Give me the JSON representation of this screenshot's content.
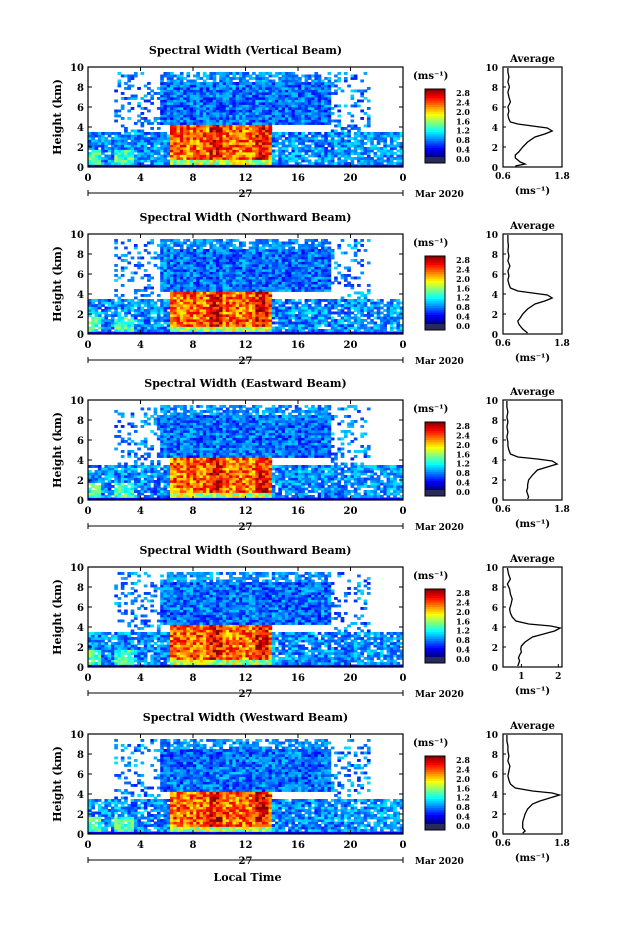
{
  "chart_data": [
    {
      "type": "heatmap",
      "title": "Spectral Width (Vertical Beam)",
      "ylabel": "Height (km)",
      "ylim": [
        0,
        10
      ],
      "yticks": [
        "0",
        "2",
        "4",
        "6",
        "8",
        "10"
      ],
      "xlim": [
        0,
        24
      ],
      "xticks": [
        "0",
        "4",
        "8",
        "12",
        "16",
        "20",
        "0"
      ],
      "date_label": "27",
      "month_label": "Mar 2020",
      "colorbar": {
        "unit": "(ms⁻¹)",
        "ticks": [
          "0.0",
          "0.4",
          "0.8",
          "1.2",
          "1.6",
          "2.0",
          "2.4",
          "2.8"
        ]
      },
      "average": {
        "title": "Average",
        "xlabel": "(ms⁻¹)",
        "xlim": [
          0.6,
          1.8
        ],
        "xticks": [
          "0.6",
          "1.8"
        ],
        "yticks": [
          "0",
          "2",
          "4",
          "6",
          "8",
          "10"
        ],
        "height": [
          0.1,
          0.3,
          0.5,
          0.7,
          0.9,
          1.2,
          1.5,
          2.0,
          2.5,
          3.0,
          3.3,
          3.6,
          3.9,
          4.1,
          4.3,
          4.5,
          4.8,
          5.2,
          5.6,
          6.0,
          6.5,
          7.0,
          7.5,
          8.0,
          8.5,
          9.0,
          9.5,
          9.9
        ],
        "value": [
          0.85,
          1.05,
          0.95,
          0.9,
          0.85,
          0.85,
          0.92,
          1.0,
          1.1,
          1.25,
          1.45,
          1.6,
          1.5,
          1.2,
          0.9,
          0.75,
          0.72,
          0.7,
          0.72,
          0.7,
          0.75,
          0.72,
          0.7,
          0.73,
          0.7,
          0.72,
          0.7,
          0.7
        ]
      }
    },
    {
      "type": "heatmap",
      "title": "Spectral Width (Northward Beam)",
      "ylabel": "Height (km)",
      "ylim": [
        0,
        10
      ],
      "yticks": [
        "0",
        "2",
        "4",
        "6",
        "8",
        "10"
      ],
      "xlim": [
        0,
        24
      ],
      "xticks": [
        "0",
        "4",
        "8",
        "12",
        "16",
        "20",
        "0"
      ],
      "date_label": "27",
      "month_label": "Mar 2020",
      "colorbar": {
        "unit": "(ms⁻¹)",
        "ticks": [
          "0.0",
          "0.4",
          "0.8",
          "1.2",
          "1.6",
          "2.0",
          "2.4",
          "2.8"
        ]
      },
      "average": {
        "title": "Average",
        "xlabel": "(ms⁻¹)",
        "xlim": [
          0.6,
          1.8
        ],
        "xticks": [
          "0.6",
          "1.8"
        ],
        "yticks": [
          "0",
          "2",
          "4",
          "6",
          "8",
          "10"
        ],
        "height": [
          0.1,
          0.3,
          0.5,
          0.8,
          1.0,
          1.3,
          1.6,
          2.0,
          2.5,
          3.0,
          3.3,
          3.6,
          3.9,
          4.1,
          4.3,
          4.6,
          5.0,
          5.4,
          5.8,
          6.3,
          6.8,
          7.3,
          7.8,
          8.3,
          8.8,
          9.3,
          9.9
        ],
        "value": [
          1.1,
          1.05,
          1.0,
          0.95,
          0.92,
          0.9,
          0.95,
          1.0,
          1.1,
          1.25,
          1.45,
          1.6,
          1.5,
          1.2,
          0.9,
          0.75,
          0.72,
          0.7,
          0.72,
          0.7,
          0.74,
          0.7,
          0.72,
          0.7,
          0.71,
          0.7,
          0.7
        ]
      }
    },
    {
      "type": "heatmap",
      "title": "Spectral Width (Eastward Beam)",
      "ylabel": "Height (km)",
      "ylim": [
        0,
        10
      ],
      "yticks": [
        "0",
        "2",
        "4",
        "6",
        "8",
        "10"
      ],
      "xlim": [
        0,
        24
      ],
      "xticks": [
        "0",
        "4",
        "8",
        "12",
        "16",
        "20",
        "0"
      ],
      "date_label": "27",
      "month_label": "Mar 2020",
      "colorbar": {
        "unit": "(ms⁻¹)",
        "ticks": [
          "0.0",
          "0.4",
          "0.8",
          "1.2",
          "1.6",
          "2.0",
          "2.4",
          "2.8"
        ]
      },
      "average": {
        "title": "Average",
        "xlabel": "(ms⁻¹)",
        "xlim": [
          0.6,
          1.8
        ],
        "xticks": [
          "0.6",
          "1.8"
        ],
        "yticks": [
          "0",
          "2",
          "4",
          "6",
          "8",
          "10"
        ],
        "height": [
          0.1,
          0.3,
          0.6,
          0.9,
          1.2,
          1.5,
          2.0,
          2.5,
          3.0,
          3.3,
          3.6,
          3.9,
          4.1,
          4.3,
          4.6,
          5.0,
          5.4,
          5.8,
          6.3,
          6.8,
          7.3,
          7.8,
          8.3,
          8.8,
          9.3,
          9.9
        ],
        "value": [
          1.1,
          1.12,
          1.1,
          1.08,
          1.1,
          1.1,
          1.12,
          1.2,
          1.3,
          1.5,
          1.7,
          1.6,
          1.3,
          0.9,
          0.75,
          0.72,
          0.7,
          0.7,
          0.68,
          0.7,
          0.68,
          0.7,
          0.68,
          0.7,
          0.68,
          0.68
        ]
      }
    },
    {
      "type": "heatmap",
      "title": "Spectral Width (Southward Beam)",
      "ylabel": "Height (km)",
      "ylim": [
        0,
        10
      ],
      "yticks": [
        "0",
        "2",
        "4",
        "6",
        "8",
        "10"
      ],
      "xlim": [
        0,
        24
      ],
      "xticks": [
        "0",
        "4",
        "8",
        "12",
        "16",
        "20",
        "0"
      ],
      "date_label": "27",
      "month_label": "Mar 2020",
      "colorbar": {
        "unit": "(ms⁻¹)",
        "ticks": [
          "0.0",
          "0.4",
          "0.8",
          "1.2",
          "1.6",
          "2.0",
          "2.4",
          "2.8"
        ]
      },
      "average": {
        "title": "Average",
        "xlabel": "(ms⁻¹)",
        "xlim": [
          0.5,
          2.1
        ],
        "xticks": [
          "1",
          "2"
        ],
        "yticks": [
          "0",
          "2",
          "4",
          "6",
          "8",
          "10"
        ],
        "height": [
          0.1,
          0.3,
          0.6,
          0.9,
          1.2,
          1.5,
          1.8,
          2.1,
          2.5,
          3.0,
          3.3,
          3.6,
          3.9,
          4.1,
          4.3,
          4.6,
          5.0,
          5.4,
          5.8,
          6.3,
          6.8,
          7.3,
          7.8,
          8.3,
          8.8,
          9.3,
          9.9
        ],
        "value": [
          0.9,
          0.92,
          0.95,
          0.92,
          0.95,
          1.0,
          0.98,
          1.0,
          1.1,
          1.3,
          1.6,
          1.9,
          2.05,
          1.8,
          1.2,
          0.85,
          0.75,
          0.7,
          0.68,
          0.72,
          0.75,
          0.7,
          0.68,
          0.62,
          0.7,
          0.65,
          0.62
        ]
      }
    },
    {
      "type": "heatmap",
      "title": "Spectral Width (Westward Beam)",
      "ylabel": "Height (km)",
      "ylim": [
        0,
        10
      ],
      "yticks": [
        "0",
        "2",
        "4",
        "6",
        "8",
        "10"
      ],
      "xlim": [
        0,
        24
      ],
      "xticks": [
        "0",
        "4",
        "8",
        "12",
        "16",
        "20",
        "0"
      ],
      "date_label": "27",
      "month_label": "Mar 2020",
      "xlabel": "Local Time",
      "colorbar": {
        "unit": "(ms⁻¹)",
        "ticks": [
          "0.0",
          "0.4",
          "0.8",
          "1.2",
          "1.6",
          "2.0",
          "2.4",
          "2.8"
        ]
      },
      "average": {
        "title": "Average",
        "xlabel": "(ms⁻¹)",
        "xlim": [
          0.6,
          1.8
        ],
        "xticks": [
          "0.6",
          "1.8"
        ],
        "yticks": [
          "0",
          "2",
          "4",
          "6",
          "8",
          "10"
        ],
        "height": [
          0.1,
          0.3,
          0.6,
          0.9,
          1.2,
          1.5,
          2.0,
          2.5,
          3.0,
          3.3,
          3.6,
          3.9,
          4.1,
          4.3,
          4.6,
          5.0,
          5.4,
          5.8,
          6.3,
          6.8,
          7.3,
          7.8,
          8.3,
          8.8,
          9.3,
          9.9
        ],
        "value": [
          1.0,
          1.05,
          1.0,
          1.0,
          1.0,
          1.02,
          1.05,
          1.1,
          1.2,
          1.35,
          1.55,
          1.75,
          1.6,
          1.2,
          0.85,
          0.75,
          0.72,
          0.7,
          0.72,
          0.74,
          0.7,
          0.72,
          0.7,
          0.7,
          0.68,
          0.68
        ]
      }
    }
  ]
}
